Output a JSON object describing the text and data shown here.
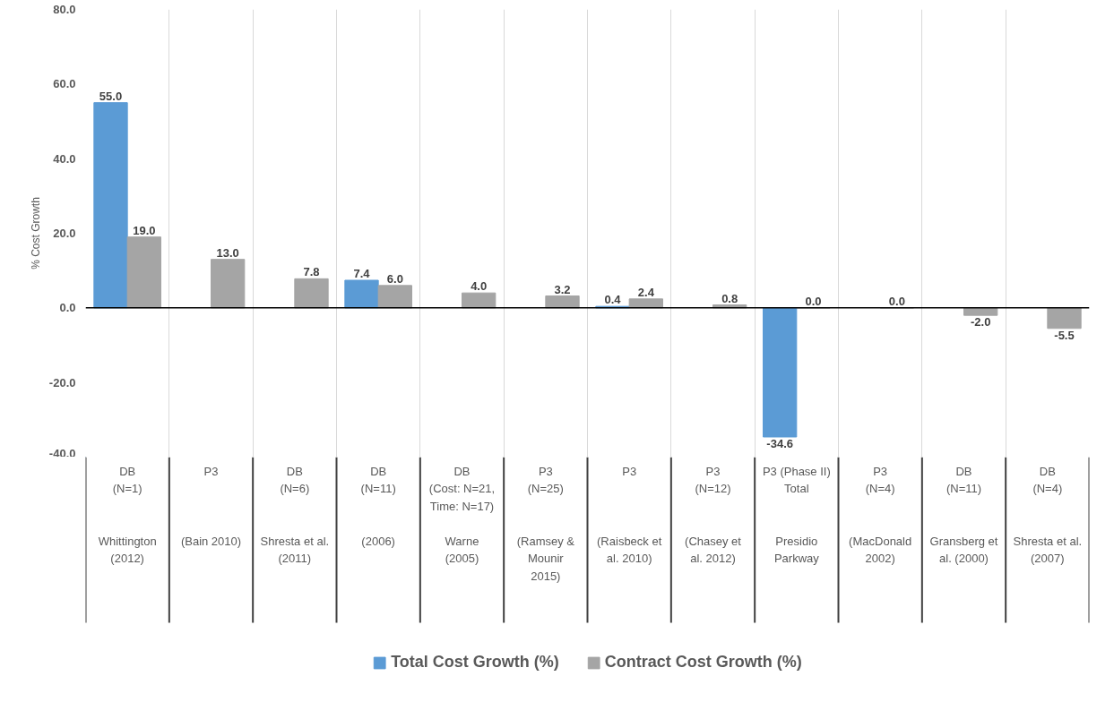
{
  "chart_data": {
    "type": "bar",
    "ylabel": "% Cost Growth",
    "categories": [
      "DB\n(N=1)\n\nWhittington\n(2012)",
      "P3\n\n(Bain 2010)",
      "DB\n(N=6)\n\nShresta et al.\n(2011)",
      "DB\n(N=11)\n\n(2006)",
      "DB\n(Cost: N=21,\nTime: N=17)\n\nWarne\n(2005)",
      "P3\n(N=25)\n\n(Ramsey &\nMounir\n2015)",
      "P3\n\n(Raisbeck et\nal. 2010)",
      "P3\n(N=12)\n\n(Chasey et\nal. 2012)",
      "P3 (Phase II)\nTotal\n\nPresidio\nParkway",
      "P3\n(N=4)\n\n(MacDonald\n2002)",
      "DB\n(N=11)\n\nGransberg et\nal. (2000)",
      "DB\n(N=4)\n\nShresta et al.\n(2007)"
    ],
    "series": [
      {
        "name": "Total Cost Growth (%)",
        "color": "#5b9bd5",
        "values": [
          55.0,
          null,
          null,
          7.4,
          null,
          null,
          0.4,
          null,
          -34.6,
          null,
          null,
          null
        ],
        "value_labels": [
          "55.0",
          null,
          null,
          "7.4",
          null,
          null,
          "0.4",
          null,
          "-34.6",
          null,
          null,
          null
        ]
      },
      {
        "name": "Contract Cost Growth (%)",
        "color": "#a5a5a5",
        "values": [
          19.0,
          13.0,
          7.8,
          6.0,
          4.0,
          3.2,
          2.4,
          0.8,
          0.0,
          0.0,
          -2.0,
          -5.5
        ],
        "value_labels": [
          "19.0",
          "13.0",
          "7.8",
          "6.0",
          "4.0",
          "3.2",
          "2.4",
          "0.8",
          "0.0",
          "0.0",
          "-2.0",
          "-5.5"
        ]
      }
    ],
    "ylim": [
      -40,
      80
    ],
    "yticks": [
      {
        "value": -40,
        "label": "-40.0"
      },
      {
        "value": -20,
        "label": "-20.0"
      },
      {
        "value": 0,
        "label": "0.0"
      },
      {
        "value": 20,
        "label": "20.0"
      },
      {
        "value": 40,
        "label": "40.0"
      },
      {
        "value": 60,
        "label": "60.0"
      },
      {
        "value": 80,
        "label": "80.0"
      }
    ],
    "grid": "x",
    "legend": "bottom"
  }
}
